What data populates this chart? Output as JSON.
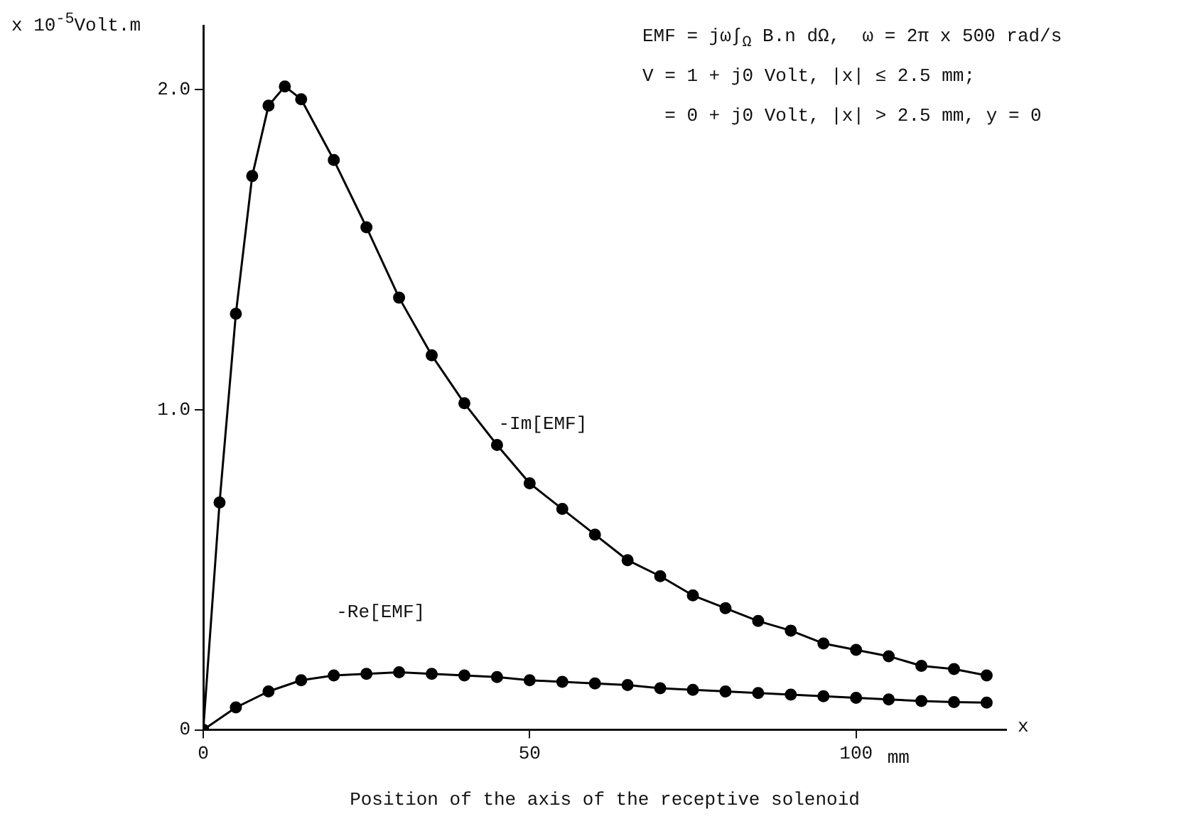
{
  "chart_data": {
    "type": "line",
    "xlabel": "Position of the axis of the receptive solenoid",
    "ylabel": "x 10$^{-5}$Volt.m",
    "xlim": [
      0,
      123
    ],
    "xticks": [
      0,
      50,
      100
    ],
    "ylim": [
      0,
      2.2
    ],
    "yticks": [
      0,
      {
        "value": 1,
        "label": "1.0"
      },
      {
        "value": 2,
        "label": "2.0"
      }
    ],
    "grid": false,
    "legend": false,
    "marker": "circle",
    "line_style": "solid",
    "annotations": [
      "x",
      "mm",
      "EMF = jω∫$_{Ω}$ B.n dΩ,  ω = 2π x 500 rad/s",
      "V = 1 + j0 Volt, |x| ≤ 2.5 mm;",
      "  = 0 + j0 Volt, |x| > 2.5 mm, y = 0"
    ],
    "series": [
      {
        "name": "-Im[EMF]",
        "color": "#000000",
        "x": [
          0,
          2.5,
          5,
          7.5,
          10,
          12.5,
          15,
          20,
          25,
          30,
          35,
          40,
          45,
          50,
          55,
          60,
          65,
          70,
          75,
          80,
          85,
          90,
          95,
          100,
          105,
          110,
          115,
          120
        ],
        "values": [
          0,
          0.71,
          1.3,
          1.73,
          1.95,
          2.01,
          1.97,
          1.78,
          1.57,
          1.35,
          1.17,
          1.02,
          0.89,
          0.77,
          0.69,
          0.61,
          0.53,
          0.48,
          0.42,
          0.38,
          0.34,
          0.31,
          0.27,
          0.25,
          0.23,
          0.2,
          0.19,
          0.17
        ]
      },
      {
        "name": "-Re[EMF]",
        "color": "#000000",
        "x": [
          0,
          5,
          10,
          15,
          20,
          25,
          30,
          35,
          40,
          45,
          50,
          55,
          60,
          65,
          70,
          75,
          80,
          85,
          90,
          95,
          100,
          105,
          110,
          115,
          120
        ],
        "values": [
          0,
          0.07,
          0.12,
          0.155,
          0.17,
          0.175,
          0.18,
          0.175,
          0.17,
          0.165,
          0.155,
          0.15,
          0.145,
          0.14,
          0.13,
          0.125,
          0.12,
          0.115,
          0.11,
          0.105,
          0.1,
          0.095,
          0.09,
          0.087,
          0.085
        ]
      }
    ]
  }
}
